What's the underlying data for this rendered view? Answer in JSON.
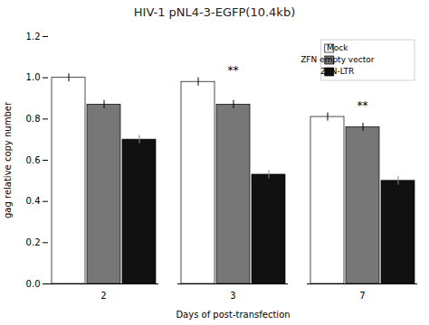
{
  "chart_data": {
    "type": "bar",
    "title": "HIV-1 pNL4-3-EGFP(10.4kb)",
    "xlabel": "Days of post-transfection",
    "ylabel": "gag relative copy number",
    "categories": [
      "2",
      "3",
      "7"
    ],
    "series": [
      {
        "name": "Mock",
        "color": "#ffffff",
        "values": [
          1.0,
          0.98,
          0.81
        ],
        "errors": [
          0.02,
          0.02,
          0.02
        ]
      },
      {
        "name": "ZFN empty vector",
        "color": "#777777",
        "values": [
          0.87,
          0.87,
          0.76
        ],
        "errors": [
          0.02,
          0.02,
          0.02
        ]
      },
      {
        "name": "ZFN-LTR",
        "color": "#111111",
        "values": [
          0.7,
          0.53,
          0.5
        ],
        "errors": [
          0.02,
          0.02,
          0.02
        ]
      }
    ],
    "ylim": [
      0,
      1.2
    ],
    "yticks": [
      {
        "value": 0,
        "label": "0.0"
      },
      0.2,
      0.4,
      0.6,
      0.8,
      {
        "value": 1.0,
        "label": "1.0"
      },
      1.2
    ],
    "annotations": [
      {
        "text": "**",
        "x": "3"
      },
      {
        "text": "**",
        "x": "7"
      }
    ],
    "legend": "upper right",
    "grid": false
  }
}
